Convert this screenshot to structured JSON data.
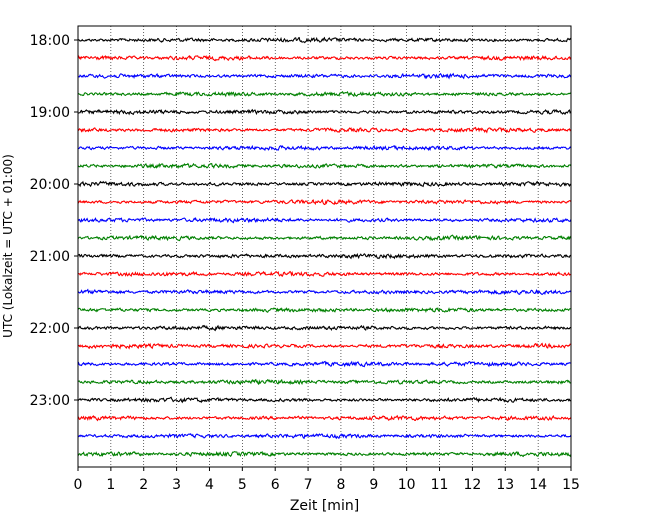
{
  "chart_data": {
    "type": "line",
    "xlabel": "Zeit  [min]",
    "ylabel": "UTC (Lokalzeit = UTC + 01:00)",
    "x_ticks": [
      "0",
      "1",
      "2",
      "3",
      "4",
      "5",
      "6",
      "7",
      "8",
      "9",
      "10",
      "11",
      "12",
      "13",
      "14",
      "15"
    ],
    "xlim": [
      0,
      15
    ],
    "y_tick_labels": [
      "18:00",
      "19:00",
      "20:00",
      "21:00",
      "22:00",
      "23:00"
    ],
    "grid": "vertical dotted at each minute",
    "trace_interval_minutes": 15,
    "traces_start": "18:00",
    "trace_count": 24,
    "trace_colors": [
      "#000000",
      "#ff0000",
      "#0000ff",
      "#008000"
    ],
    "series_note": "helicorder-style seismogram; each row is a 15-minute trace of noise-level signal"
  }
}
